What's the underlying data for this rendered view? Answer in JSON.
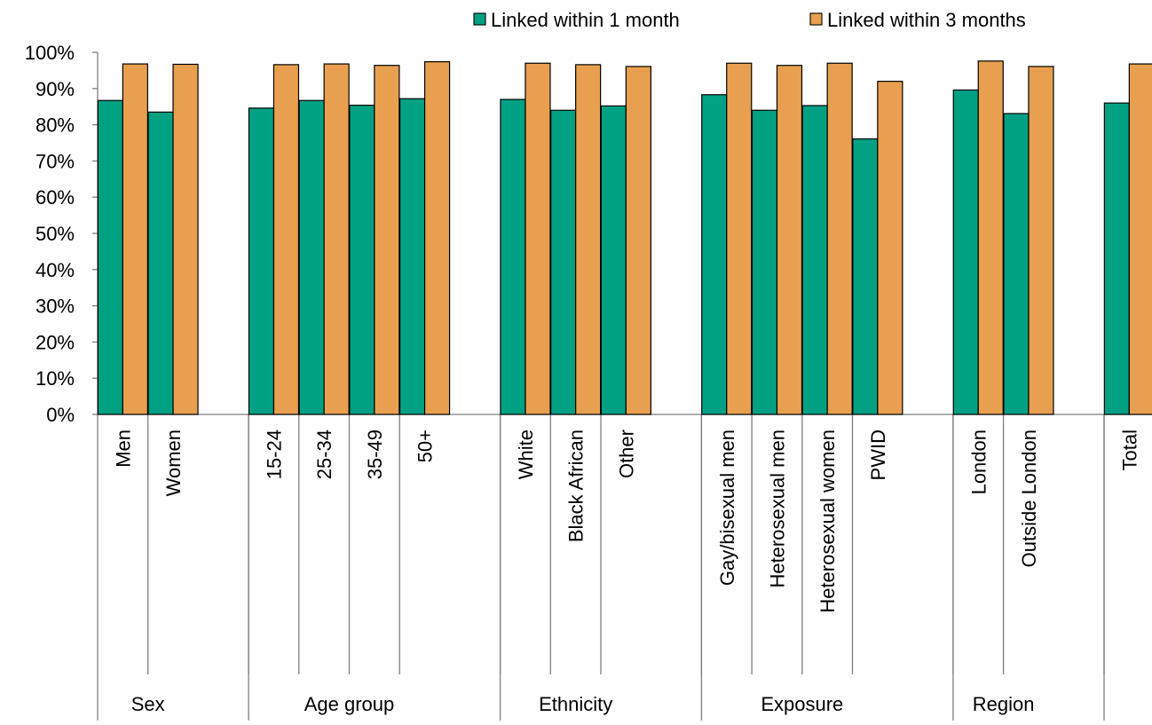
{
  "chart_data": {
    "type": "bar",
    "ylim": [
      0,
      100
    ],
    "yticks": [
      "0%",
      "10%",
      "20%",
      "30%",
      "40%",
      "50%",
      "60%",
      "70%",
      "80%",
      "90%",
      "100%"
    ],
    "legend_position": "top-right",
    "gridlines": false,
    "colors": {
      "month1": "#00A182",
      "month3": "#E8A050"
    },
    "series": [
      {
        "name": "Linked within 1 month",
        "color": "#00A182",
        "values": [
          86.7,
          83.5,
          84.6,
          86.7,
          85.4,
          87.2,
          87.0,
          84.0,
          85.2,
          88.3,
          84.0,
          85.3,
          76.1,
          89.6,
          83.1,
          86.0
        ]
      },
      {
        "name": "Linked within 3 months",
        "color": "#E8A050",
        "values": [
          96.8,
          96.7,
          96.6,
          96.8,
          96.4,
          97.4,
          97.0,
          96.6,
          96.1,
          97.0,
          96.4,
          97.0,
          92.0,
          97.6,
          96.1,
          96.8
        ]
      }
    ],
    "groups": [
      {
        "label": "Sex",
        "categories": [
          "Men",
          "Women"
        ]
      },
      {
        "label": "Age group",
        "categories": [
          "15-24",
          "25-34",
          "35-49",
          "50+"
        ]
      },
      {
        "label": "Ethnicity",
        "categories": [
          "White",
          "Black African",
          "Other"
        ]
      },
      {
        "label": "Exposure",
        "categories": [
          "Gay/bisexual men",
          "Heterosexual men",
          "Heterosexual women",
          "PWID"
        ]
      },
      {
        "label": "Region",
        "categories": [
          "London",
          "Outside London"
        ]
      },
      {
        "label": "",
        "categories": [
          "Total"
        ]
      }
    ]
  }
}
